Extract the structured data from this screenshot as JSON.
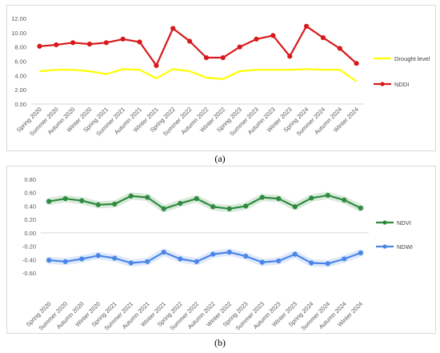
{
  "figure_labels": {
    "a": "(a)",
    "b": "(b)"
  },
  "chart_data": [
    {
      "type": "line",
      "categories": [
        "Spring 2020",
        "Summer 2020",
        "Autumn 2020",
        "Winter 2020",
        "Spring 2021",
        "Summer 2021",
        "Autumn 2021",
        "Winter 2021",
        "Spring 2022",
        "Summer 2022",
        "Autumn 2022",
        "Winter 2022",
        "Spring 2023",
        "Summer 2023",
        "Autumn 2023",
        "Winter 2023",
        "Spring 2024",
        "Summer 2024",
        "Autumn 2024",
        "Winter 2024"
      ],
      "ylim": [
        0,
        12
      ],
      "yticks": [
        0,
        2,
        4,
        6,
        8,
        10,
        12
      ],
      "ytick_labels": [
        "0.00",
        "2.00",
        "4.00",
        "6.00",
        "8.00",
        "10.00",
        "12.00"
      ],
      "grid": false,
      "legend_position": "right",
      "series": [
        {
          "name": "Drought level",
          "color": "#ffff00",
          "marker": "none",
          "glow": false,
          "values": [
            4.6,
            4.8,
            4.8,
            4.6,
            4.2,
            4.9,
            4.8,
            3.6,
            4.9,
            4.6,
            3.7,
            3.5,
            4.6,
            4.8,
            4.8,
            4.8,
            4.9,
            4.8,
            4.8,
            3.2
          ]
        },
        {
          "name": "NDDI",
          "color": "#d7191c",
          "marker": "circle",
          "glow": false,
          "values": [
            8.1,
            8.3,
            8.6,
            8.4,
            8.6,
            9.1,
            8.7,
            5.4,
            10.6,
            8.8,
            6.5,
            6.5,
            8.0,
            9.1,
            9.6,
            6.7,
            10.9,
            9.3,
            7.8,
            5.7
          ]
        }
      ]
    },
    {
      "type": "line",
      "categories": [
        "Spring 2020",
        "Summer 2020",
        "Autumn 2020",
        "Winter 2020",
        "Spring 2021",
        "Summer 2021",
        "Autumn 2021",
        "Winter 2021",
        "Spring 2022",
        "Summer 2022",
        "Autumn 2022",
        "Winter 2022",
        "Spring 2023",
        "Summer 2023",
        "Autumn 2023",
        "Winter 2023",
        "Spring 2024",
        "Summer 2024",
        "Autumn 2024",
        "Winter 2024"
      ],
      "ylim": [
        -0.6,
        0.8
      ],
      "yticks": [
        -0.6,
        -0.4,
        -0.2,
        0,
        0.2,
        0.4,
        0.6,
        0.8
      ],
      "ytick_labels": [
        "-0.60",
        "-0.40",
        "-0.20",
        "0.00",
        "0.20",
        "0.40",
        "0.60",
        "0.80"
      ],
      "grid": false,
      "legend_position": "right",
      "series": [
        {
          "name": "NDVI",
          "color": "#2e8b3e",
          "marker": "circle",
          "glow": true,
          "values": [
            0.47,
            0.51,
            0.48,
            0.42,
            0.43,
            0.55,
            0.53,
            0.36,
            0.44,
            0.51,
            0.39,
            0.36,
            0.4,
            0.53,
            0.51,
            0.39,
            0.52,
            0.56,
            0.49,
            0.37
          ]
        },
        {
          "name": "NDWI",
          "color": "#4a86e8",
          "marker": "circle",
          "glow": true,
          "values": [
            -0.41,
            -0.43,
            -0.39,
            -0.34,
            -0.38,
            -0.45,
            -0.43,
            -0.29,
            -0.39,
            -0.43,
            -0.32,
            -0.29,
            -0.35,
            -0.44,
            -0.42,
            -0.32,
            -0.45,
            -0.46,
            -0.39,
            -0.3
          ]
        }
      ]
    }
  ]
}
